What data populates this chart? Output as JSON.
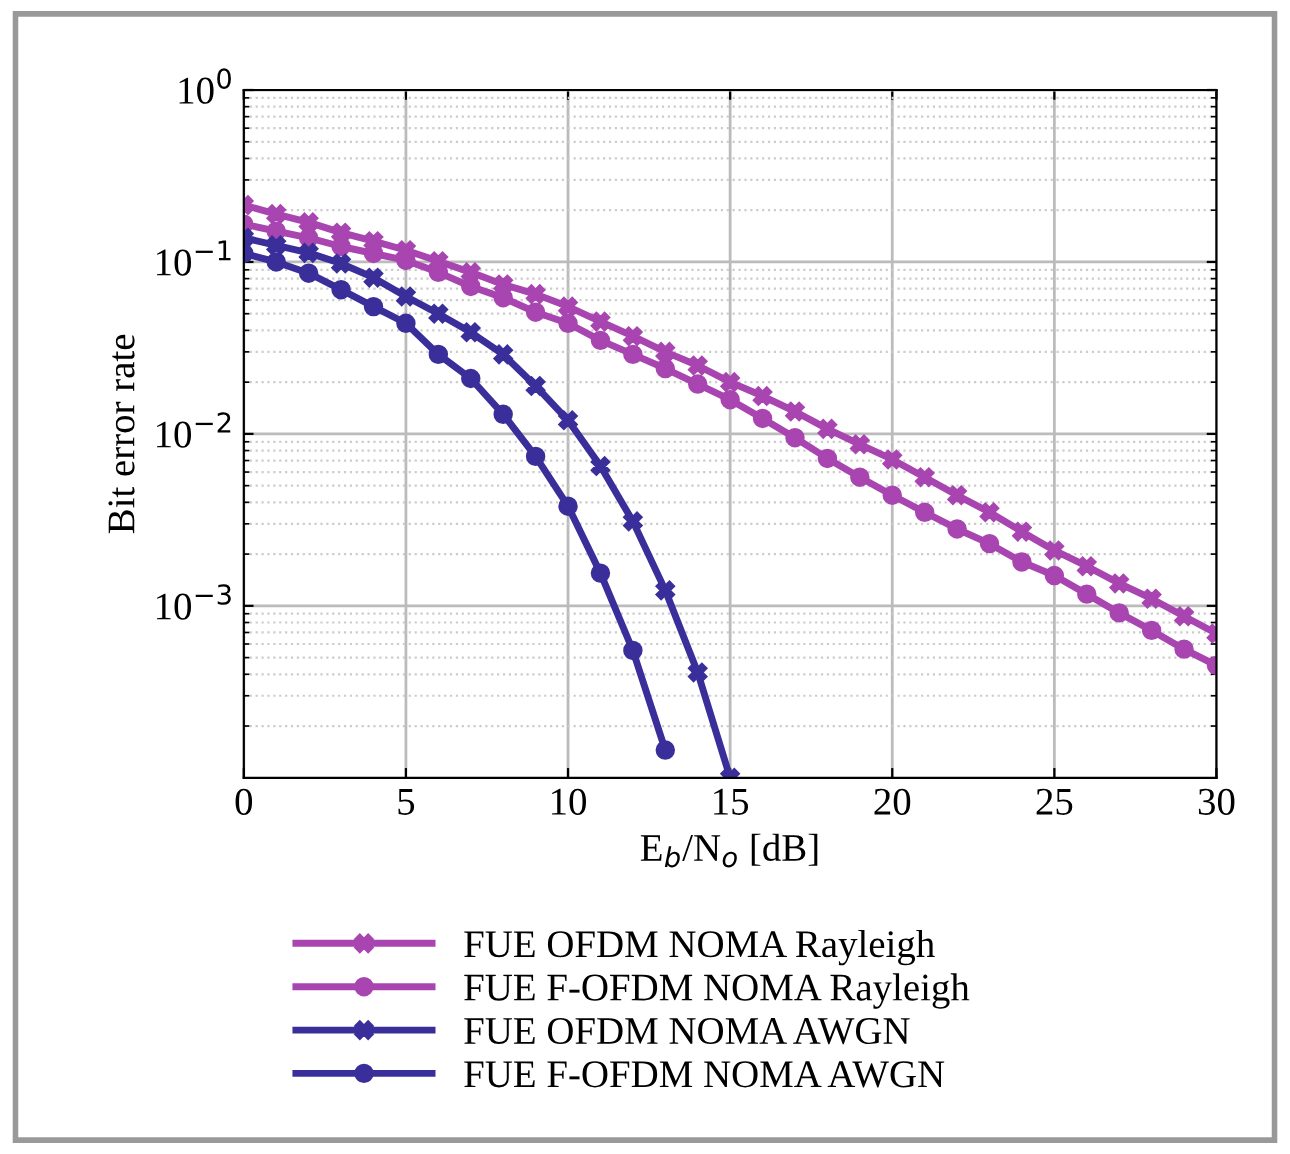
{
  "chart_data": {
    "type": "line",
    "xlabel": "E$_{b}$/N$_{o}$ [dB]",
    "ylabel": "Bit error rate",
    "log": "y",
    "grid": true,
    "legend": "bottom",
    "line_style": "solid",
    "xlim": [
      0,
      30
    ],
    "xticks": [
      0,
      5,
      10,
      15,
      20,
      25,
      30
    ],
    "ylim": [
      0.0001,
      1
    ],
    "yticks": [
      {
        "value": 1,
        "label": "10$^{0}$"
      },
      {
        "value": 0.1,
        "label": "10$^{−1}$"
      },
      {
        "value": 0.01,
        "label": "10$^{−2}$"
      },
      {
        "value": 0.001,
        "label": "10$^{−3}$"
      }
    ],
    "series": [
      {
        "name": "FUE OFDM NOMA Rayleigh",
        "color": "#a845b0",
        "marker": "cross",
        "x": [
          0,
          1,
          2,
          3,
          4,
          5,
          6,
          7,
          8,
          9,
          10,
          11,
          12,
          13,
          14,
          15,
          16,
          17,
          18,
          19,
          20,
          21,
          22,
          23,
          24,
          25,
          26,
          27,
          28,
          29,
          30
        ],
        "values": [
          0.214,
          0.19,
          0.17,
          0.148,
          0.132,
          0.117,
          0.101,
          0.087,
          0.074,
          0.065,
          0.055,
          0.045,
          0.037,
          0.03,
          0.025,
          0.02,
          0.0166,
          0.0135,
          0.0107,
          0.0087,
          0.0071,
          0.0056,
          0.0044,
          0.0035,
          0.0027,
          0.0021,
          0.0017,
          0.00135,
          0.0011,
          0.00087,
          0.00069
        ]
      },
      {
        "name": "FUE F-OFDM NOMA Rayleigh",
        "color": "#a845b0",
        "marker": "circle",
        "x": [
          0,
          1,
          2,
          3,
          4,
          5,
          6,
          7,
          8,
          9,
          10,
          11,
          12,
          13,
          14,
          15,
          16,
          17,
          18,
          19,
          20,
          21,
          22,
          23,
          24,
          25,
          26,
          27,
          28,
          29,
          30
        ],
        "values": [
          0.166,
          0.151,
          0.138,
          0.123,
          0.112,
          0.102,
          0.087,
          0.072,
          0.062,
          0.051,
          0.044,
          0.035,
          0.029,
          0.024,
          0.0195,
          0.0158,
          0.0123,
          0.0095,
          0.0072,
          0.0056,
          0.0044,
          0.0035,
          0.0028,
          0.0023,
          0.0018,
          0.0015,
          0.00117,
          0.00091,
          0.00072,
          0.00056,
          0.00045
        ]
      },
      {
        "name": "FUE OFDM NOMA AWGN",
        "color": "#3a2f9a",
        "marker": "cross",
        "x": [
          0,
          1,
          2,
          3,
          4,
          5,
          6,
          7,
          8,
          9,
          10,
          11,
          12,
          13,
          14,
          15
        ],
        "values": [
          0.138,
          0.125,
          0.113,
          0.098,
          0.081,
          0.063,
          0.05,
          0.039,
          0.029,
          0.019,
          0.012,
          0.0065,
          0.0031,
          0.00123,
          0.00041,
          0.0001
        ]
      },
      {
        "name": "FUE F-OFDM NOMA AWGN",
        "color": "#3a2f9a",
        "marker": "circle",
        "x": [
          0,
          1,
          2,
          3,
          4,
          5,
          6,
          7,
          8,
          9,
          10,
          11,
          12,
          13
        ],
        "values": [
          0.112,
          0.1,
          0.086,
          0.069,
          0.055,
          0.044,
          0.029,
          0.021,
          0.013,
          0.0074,
          0.0038,
          0.00155,
          0.00055,
          0.000145
        ]
      }
    ]
  }
}
